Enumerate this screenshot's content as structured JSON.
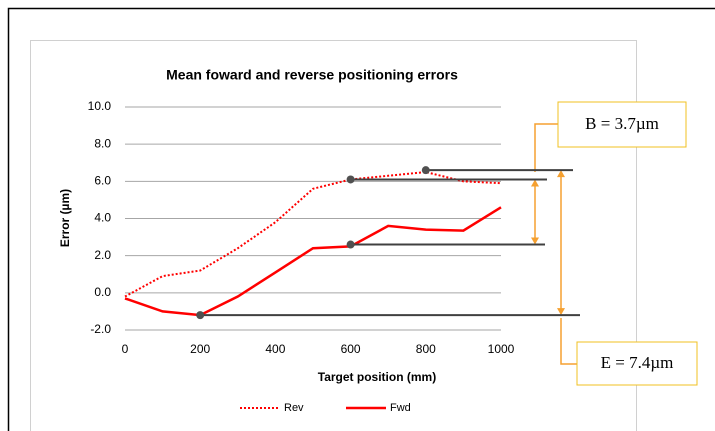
{
  "chart_data": {
    "type": "line",
    "title": "Mean foward and reverse positioning errors",
    "x_label": "Target position (mm)",
    "y_label": "Error (µm)",
    "x": [
      0,
      100,
      200,
      300,
      400,
      500,
      600,
      700,
      800,
      900,
      1000
    ],
    "series": [
      {
        "name": "Rev",
        "color": "#ff0000",
        "dash": "dotted",
        "values": [
          -0.2,
          0.9,
          1.2,
          2.4,
          3.8,
          5.6,
          6.1,
          6.3,
          6.5,
          6.0,
          5.9
        ]
      },
      {
        "name": "Fwd",
        "color": "#ff0000",
        "dash": "solid",
        "values": [
          -0.3,
          -1.0,
          -1.2,
          -0.2,
          1.1,
          2.4,
          2.5,
          3.6,
          3.4,
          3.35,
          4.6
        ]
      }
    ],
    "xlim": [
      0,
      1000
    ],
    "xticks": [
      0,
      200,
      400,
      600,
      800,
      1000
    ],
    "ylim": [
      -2,
      10
    ],
    "yticks": [
      {
        "value": -2,
        "label": "-2.0"
      },
      {
        "value": 0,
        "label": "0.0"
      },
      {
        "value": 2,
        "label": "2.0"
      },
      {
        "value": 4,
        "label": "4.0"
      },
      {
        "value": 6,
        "label": "6.0"
      },
      {
        "value": 8,
        "label": "8.0"
      },
      {
        "value": 10,
        "label": "10.0"
      }
    ],
    "grid": true,
    "legend": "bottom",
    "reference_points": [
      {
        "x": 800,
        "y": 6.6
      },
      {
        "x": 600,
        "y": 6.1
      },
      {
        "x": 600,
        "y": 2.6
      },
      {
        "x": 200,
        "y": -1.2
      }
    ],
    "annotations": [
      "B = 3.7µm",
      "E = 7.4µm"
    ]
  }
}
